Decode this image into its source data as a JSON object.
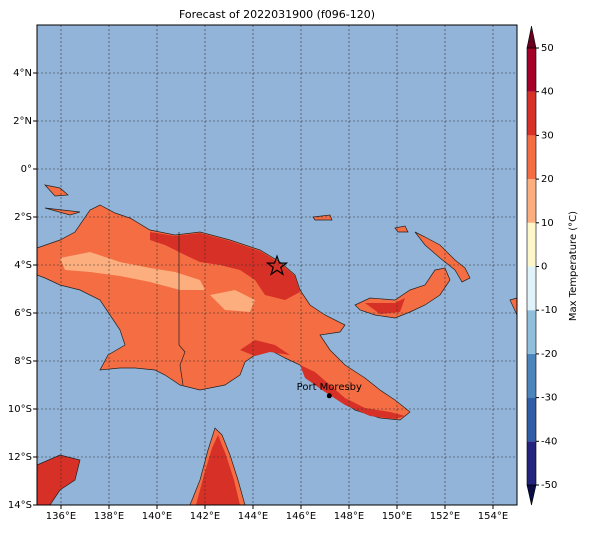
{
  "chart_data": {
    "type": "map",
    "title": "Forecast of 2022031900 (f096-120)",
    "xlim": [
      135,
      155
    ],
    "ylim": [
      -14,
      6
    ],
    "xticks": [
      {
        "value": 136,
        "label": "136°E"
      },
      {
        "value": 138,
        "label": "138°E"
      },
      {
        "value": 140,
        "label": "140°E"
      },
      {
        "value": 142,
        "label": "142°E"
      },
      {
        "value": 144,
        "label": "144°E"
      },
      {
        "value": 146,
        "label": "146°E"
      },
      {
        "value": 148,
        "label": "148°E"
      },
      {
        "value": 150,
        "label": "150°E"
      },
      {
        "value": 152,
        "label": "152°E"
      },
      {
        "value": 154,
        "label": "154°E"
      }
    ],
    "yticks": [
      {
        "value": 4,
        "label": "4°N"
      },
      {
        "value": 2,
        "label": "2°N"
      },
      {
        "value": 0,
        "label": "0°"
      },
      {
        "value": -2,
        "label": "2°S"
      },
      {
        "value": -4,
        "label": "4°S"
      },
      {
        "value": -6,
        "label": "6°S"
      },
      {
        "value": -8,
        "label": "8°S"
      },
      {
        "value": -10,
        "label": "10°S"
      },
      {
        "value": -12,
        "label": "12°S"
      },
      {
        "value": -14,
        "label": "14°S"
      }
    ],
    "grid": true,
    "ocean_color": "#92b4d9",
    "star": {
      "lon": 145.0,
      "lat": -4.05
    },
    "city": {
      "name": "Port Moresby",
      "lon": 147.18,
      "lat": -9.45
    },
    "colorbar": {
      "label": "Max Temperature (°C)",
      "lim": [
        -50,
        50
      ],
      "ticks": [
        -50,
        -40,
        -30,
        -20,
        -10,
        0,
        10,
        20,
        30,
        40,
        50
      ],
      "colors": [
        "#24237e",
        "#2f5ea6",
        "#4b85bc",
        "#90bfdc",
        "#e0f3f8",
        "#fef7c9",
        "#fcae7e",
        "#f46d43",
        "#d73027",
        "#a50026"
      ],
      "extend_colors": [
        "#0b0b45",
        "#67001f"
      ]
    }
  }
}
